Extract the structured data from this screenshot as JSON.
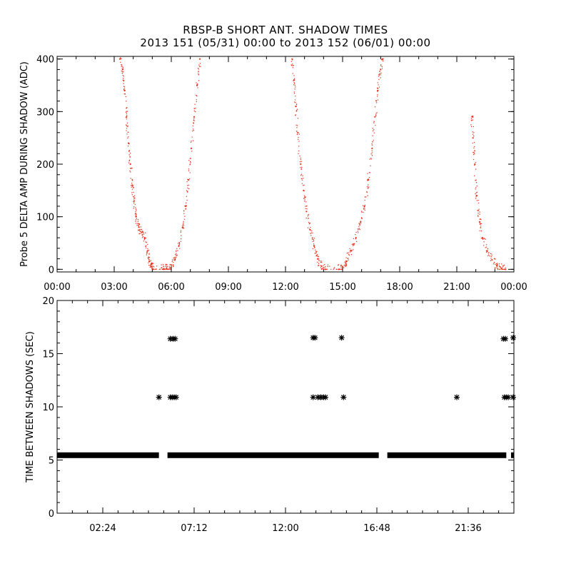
{
  "title_line1": "RBSP-B SHORT ANT. SHADOW TIMES",
  "title_line2": "2013 151 (05/31) 00:00 to 2013 152 (06/01) 00:00",
  "colors": {
    "top_series": "#e8301c",
    "bottom_series": "#000000",
    "axes": "#000000"
  },
  "chart_data": [
    {
      "type": "scatter",
      "ylabel": "Probe 5 DELTA AMP DURING SHADOW (ADC)",
      "xlabel": "",
      "xunit": "hours",
      "xlim": [
        0,
        24
      ],
      "ylim": [
        -5,
        405
      ],
      "xticks": [
        {
          "value": 0,
          "label": "00:00"
        },
        {
          "value": 3,
          "label": "03:00"
        },
        {
          "value": 6,
          "label": "06:00"
        },
        {
          "value": 9,
          "label": "09:00"
        },
        {
          "value": 12,
          "label": "12:00"
        },
        {
          "value": 15,
          "label": "15:00"
        },
        {
          "value": 18,
          "label": "18:00"
        },
        {
          "value": 21,
          "label": "21:00"
        },
        {
          "value": 24,
          "label": "00:00"
        }
      ],
      "yticks": [
        0,
        100,
        200,
        300,
        400
      ],
      "series": [
        {
          "points": [
            [
              3.3,
              400
            ],
            [
              3.45,
              380
            ],
            [
              3.55,
              340
            ],
            [
              3.65,
              290
            ],
            [
              3.75,
              240
            ],
            [
              3.85,
              200
            ],
            [
              3.95,
              160
            ],
            [
              4.05,
              130
            ],
            [
              4.15,
              100
            ],
            [
              4.3,
              80
            ],
            [
              4.45,
              70
            ],
            [
              4.6,
              60
            ],
            [
              4.75,
              35
            ],
            [
              4.85,
              15
            ],
            [
              4.95,
              5
            ],
            [
              5.05,
              0
            ],
            [
              5.6,
              0
            ],
            [
              5.75,
              2
            ],
            [
              6.0,
              8
            ],
            [
              6.2,
              20
            ],
            [
              6.4,
              45
            ],
            [
              6.6,
              80
            ],
            [
              6.75,
              120
            ],
            [
              6.9,
              170
            ],
            [
              7.05,
              230
            ],
            [
              7.2,
              290
            ],
            [
              7.35,
              350
            ],
            [
              7.5,
              400
            ],
            [
              12.35,
              400
            ],
            [
              12.45,
              360
            ],
            [
              12.55,
              310
            ],
            [
              12.65,
              260
            ],
            [
              12.8,
              200
            ],
            [
              12.95,
              150
            ],
            [
              13.1,
              110
            ],
            [
              13.3,
              75
            ],
            [
              13.5,
              45
            ],
            [
              13.7,
              20
            ],
            [
              13.9,
              6
            ],
            [
              14.1,
              0
            ],
            [
              14.8,
              0
            ],
            [
              15.0,
              5
            ],
            [
              15.2,
              15
            ],
            [
              15.45,
              35
            ],
            [
              15.7,
              60
            ],
            [
              15.95,
              90
            ],
            [
              16.15,
              120
            ],
            [
              16.35,
              170
            ],
            [
              16.55,
              230
            ],
            [
              16.7,
              290
            ],
            [
              16.85,
              340
            ],
            [
              17.0,
              380
            ],
            [
              17.1,
              400
            ],
            [
              21.8,
              290
            ],
            [
              21.85,
              250
            ],
            [
              21.95,
              200
            ],
            [
              22.05,
              140
            ],
            [
              22.2,
              90
            ],
            [
              22.35,
              60
            ],
            [
              22.6,
              35
            ],
            [
              22.85,
              18
            ],
            [
              23.1,
              7
            ],
            [
              23.35,
              2
            ],
            [
              23.55,
              0
            ]
          ]
        }
      ]
    },
    {
      "type": "scatter",
      "ylabel": "TIME BETWEEN SHADOWS (SEC)",
      "xlabel": "",
      "xunit": "hours",
      "xlim": [
        0,
        24
      ],
      "ylim": [
        0,
        20
      ],
      "xticks": [
        {
          "value": 2.4,
          "label": "02:24"
        },
        {
          "value": 7.2,
          "label": "07:12"
        },
        {
          "value": 12.0,
          "label": "12:00"
        },
        {
          "value": 16.8,
          "label": "16:48"
        },
        {
          "value": 21.6,
          "label": "21:36"
        }
      ],
      "yticks": [
        0,
        5,
        10,
        15,
        20
      ],
      "baseline": {
        "value": 5.45,
        "segments": [
          [
            0,
            5.35
          ],
          [
            5.8,
            16.9
          ],
          [
            17.35,
            23.6
          ],
          [
            23.85,
            24
          ]
        ]
      },
      "series": [
        {
          "points": [
            [
              5.35,
              10.9
            ],
            [
              5.95,
              10.9
            ],
            [
              6.05,
              10.9
            ],
            [
              6.15,
              10.9
            ],
            [
              6.25,
              10.9
            ],
            [
              5.95,
              16.4
            ],
            [
              6.1,
              16.4
            ],
            [
              6.2,
              16.4
            ],
            [
              13.45,
              10.9
            ],
            [
              13.7,
              10.9
            ],
            [
              13.85,
              10.9
            ],
            [
              14.0,
              10.9
            ],
            [
              14.1,
              10.9
            ],
            [
              13.45,
              16.5
            ],
            [
              13.55,
              16.5
            ],
            [
              15.05,
              10.9
            ],
            [
              14.95,
              16.5
            ],
            [
              21.0,
              10.9
            ],
            [
              23.5,
              10.9
            ],
            [
              23.6,
              10.9
            ],
            [
              23.7,
              10.9
            ],
            [
              23.45,
              16.4
            ],
            [
              23.55,
              16.4
            ],
            [
              24.0,
              10.9
            ],
            [
              24.0,
              16.5
            ]
          ]
        }
      ]
    }
  ]
}
